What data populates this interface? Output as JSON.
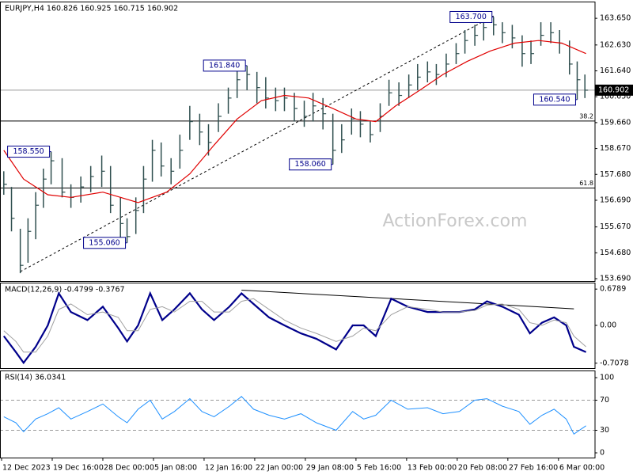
{
  "chart_data": [
    {
      "type": "ohlc",
      "title": "EURJPY,H4  160.826 160.925 160.715 160.902",
      "watermark": "ActionForex.com",
      "color": "#2f4f4f",
      "xlim": [
        -1.44,
        539.2
      ],
      "ylim": [
        153.6,
        164.29
      ],
      "xticks": [
        {
          "value": 0,
          "label": "12 Dec 2023"
        },
        {
          "value": 46,
          "label": "19 Dec 16:00"
        },
        {
          "value": 92,
          "label": "28 Dec 00:00"
        },
        {
          "value": 138,
          "label": "5 Jan 08:00"
        },
        {
          "value": 184,
          "label": "12 Jan 16:00"
        },
        {
          "value": 230,
          "label": "22 Jan 00:00"
        },
        {
          "value": 276,
          "label": "29 Jan 08:00"
        },
        {
          "value": 322,
          "label": "5 Feb 16:00"
        },
        {
          "value": 368,
          "label": "13 Feb 00:00"
        },
        {
          "value": 414,
          "label": "20 Feb 08:00"
        },
        {
          "value": 460,
          "label": "27 Feb 16:00"
        },
        {
          "value": 506,
          "label": "6 Mar 00:00"
        }
      ],
      "yticks": [
        {
          "value": 163.65,
          "label": "163.650"
        },
        {
          "value": 162.63,
          "label": "162.630"
        },
        {
          "value": 161.64,
          "label": "161.640"
        },
        {
          "value": 160.65,
          "label": "160.650"
        },
        {
          "value": 159.66,
          "label": "159.660"
        },
        {
          "value": 158.67,
          "label": "158.670"
        },
        {
          "value": 157.68,
          "label": "157.680"
        },
        {
          "value": 156.69,
          "label": "156.690"
        },
        {
          "value": 155.67,
          "label": "155.670"
        },
        {
          "value": 154.68,
          "label": "154.680"
        },
        {
          "value": 153.69,
          "label": "153.690"
        }
      ],
      "x": [
        2,
        9,
        17,
        24,
        31,
        38,
        45,
        55,
        63,
        72,
        81,
        91,
        99,
        108,
        114,
        122,
        129,
        137,
        145,
        154,
        162,
        171,
        180,
        188,
        197,
        206,
        214,
        223,
        232,
        240,
        249,
        257,
        266,
        275,
        283,
        292,
        301,
        309,
        318,
        326,
        335,
        344,
        352,
        361,
        370,
        378,
        387,
        395,
        404,
        413,
        421,
        430,
        438,
        447,
        455,
        464,
        473,
        481,
        490,
        499,
        507,
        516,
        523,
        530
      ],
      "high": [
        157.8,
        157.2,
        155.6,
        156.0,
        157.0,
        157.9,
        158.55,
        158.3,
        157.3,
        157.6,
        158.0,
        158.4,
        158.0,
        156.8,
        156.0,
        156.8,
        158.0,
        159.0,
        158.9,
        158.3,
        159.2,
        160.3,
        160.0,
        159.6,
        160.4,
        161.0,
        161.7,
        161.84,
        161.6,
        161.4,
        161.0,
        161.0,
        160.8,
        160.5,
        160.8,
        160.6,
        160.0,
        159.6,
        160.2,
        160.1,
        159.7,
        160.4,
        161.3,
        161.2,
        161.5,
        161.9,
        162.0,
        161.9,
        162.3,
        162.7,
        163.2,
        163.4,
        163.7,
        163.7,
        163.5,
        163.4,
        163.0,
        162.8,
        163.5,
        163.5,
        163.2,
        162.8,
        162.0,
        161.5
      ],
      "low": [
        156.9,
        155.5,
        153.9,
        154.3,
        155.2,
        156.4,
        157.3,
        156.8,
        156.4,
        156.6,
        157.0,
        157.2,
        156.2,
        155.2,
        155.06,
        155.4,
        156.2,
        157.4,
        157.6,
        157.3,
        157.9,
        159.0,
        158.8,
        158.4,
        159.3,
        160.0,
        160.6,
        160.9,
        160.4,
        160.2,
        160.1,
        160.1,
        159.7,
        159.5,
        159.7,
        159.4,
        158.06,
        158.5,
        159.2,
        159.1,
        158.9,
        159.3,
        160.3,
        160.3,
        160.6,
        160.9,
        161.2,
        161.1,
        161.4,
        161.9,
        162.3,
        162.6,
        162.8,
        163.0,
        162.7,
        162.5,
        161.8,
        161.9,
        162.6,
        162.7,
        162.3,
        161.5,
        160.54,
        160.6
      ],
      "close": [
        157.3,
        156.0,
        154.2,
        155.5,
        156.5,
        157.5,
        158.2,
        157.0,
        156.8,
        157.2,
        157.6,
        157.8,
        156.5,
        155.8,
        155.3,
        156.3,
        157.5,
        158.6,
        158.0,
        157.8,
        158.6,
        159.7,
        159.3,
        158.9,
        159.9,
        160.6,
        161.3,
        161.5,
        161.0,
        160.6,
        160.5,
        160.6,
        160.2,
        159.9,
        160.3,
        160.0,
        158.6,
        159.0,
        159.8,
        159.6,
        159.2,
        159.9,
        160.8,
        160.7,
        161.1,
        161.4,
        161.6,
        161.5,
        161.9,
        162.3,
        162.8,
        163.0,
        163.3,
        163.4,
        163.1,
        162.9,
        162.3,
        162.3,
        163.0,
        163.1,
        162.7,
        161.9,
        161.3,
        160.9
      ],
      "moving_average": {
        "color": "#e00000",
        "x": [
          2,
          20,
          42,
          63,
          92,
          124,
          150,
          171,
          193,
          214,
          236,
          257,
          279,
          301,
          322,
          340,
          358,
          380,
          401,
          423,
          444,
          466,
          488,
          509,
          531
        ],
        "values": [
          158.6,
          157.5,
          156.9,
          156.8,
          157.0,
          156.6,
          157.0,
          157.7,
          158.8,
          159.8,
          160.5,
          160.7,
          160.6,
          160.2,
          159.8,
          159.7,
          160.3,
          160.9,
          161.5,
          162.0,
          162.4,
          162.7,
          162.8,
          162.7,
          162.3
        ]
      },
      "levels": [
        {
          "label": "38.2",
          "value": 159.72
        },
        {
          "label": "61.8",
          "value": 157.16
        }
      ],
      "last_price": {
        "value": 160.902,
        "label": "160.902"
      },
      "trendline": {
        "x": [
          17,
          447
        ],
        "values": [
          153.96,
          163.74
        ]
      },
      "annotations": [
        {
          "label": "163.700",
          "value": 163.7,
          "x": 447
        },
        {
          "label": "161.840",
          "value": 161.84,
          "x": 223
        },
        {
          "label": "160.540",
          "value": 160.54,
          "x": 523
        },
        {
          "label": "158.550",
          "value": 158.55,
          "x": 45
        },
        {
          "label": "158.060",
          "value": 158.06,
          "x": 301
        },
        {
          "label": "155.060",
          "value": 155.06,
          "x": 114
        }
      ]
    },
    {
      "type": "line",
      "title": "MACD(12,26,9) -0.4799 -0.3767",
      "xlim": [
        -1.44,
        539.2
      ],
      "ylim": [
        -0.8,
        0.8
      ],
      "yticks": [
        0.6789,
        {
          "value": 0,
          "label": "0.00"
        },
        -0.7078
      ],
      "x": [
        2,
        13,
        20,
        31,
        42,
        52,
        63,
        78,
        92,
        106,
        114,
        124,
        135,
        146,
        157,
        171,
        182,
        193,
        207,
        218,
        229,
        243,
        257,
        272,
        286,
        304,
        319,
        329,
        340,
        354,
        369,
        387,
        401,
        416,
        430,
        441,
        455,
        470,
        480,
        491,
        502,
        513,
        520,
        531
      ],
      "series": [
        {
          "color": "#00008b",
          "values": [
            -0.2,
            -0.5,
            -0.7,
            -0.4,
            0.0,
            0.6,
            0.25,
            0.1,
            0.35,
            -0.05,
            -0.3,
            0.0,
            0.6,
            0.1,
            0.3,
            0.6,
            0.3,
            0.1,
            0.35,
            0.6,
            0.4,
            0.15,
            0.0,
            -0.15,
            -0.25,
            -0.45,
            0.0,
            0.0,
            -0.2,
            0.5,
            0.35,
            0.25,
            0.25,
            0.25,
            0.3,
            0.45,
            0.35,
            0.2,
            -0.15,
            0.05,
            0.15,
            0.0,
            -0.4,
            -0.5
          ]
        },
        {
          "color": "#a0a0a0",
          "values": [
            -0.1,
            -0.3,
            -0.5,
            -0.5,
            -0.2,
            0.3,
            0.4,
            0.2,
            0.25,
            0.15,
            -0.1,
            -0.1,
            0.3,
            0.35,
            0.25,
            0.45,
            0.45,
            0.25,
            0.25,
            0.45,
            0.5,
            0.3,
            0.1,
            -0.05,
            -0.15,
            -0.3,
            -0.2,
            -0.05,
            -0.1,
            0.2,
            0.35,
            0.3,
            0.25,
            0.25,
            0.28,
            0.38,
            0.4,
            0.3,
            0.05,
            0.0,
            0.1,
            0.05,
            -0.2,
            -0.4
          ]
        }
      ],
      "trendline": {
        "x": [
          218,
          520
        ],
        "values": [
          0.66,
          0.31
        ]
      }
    },
    {
      "type": "line",
      "title": "RSI(14) 36.0341",
      "xlim": [
        -1.44,
        539.2
      ],
      "ylim": [
        -6.3,
        109.5
      ],
      "yticks": [
        100,
        70,
        30,
        0
      ],
      "grid": "dashed",
      "x": [
        2,
        13,
        20,
        31,
        42,
        52,
        63,
        78,
        92,
        106,
        114,
        124,
        135,
        146,
        157,
        171,
        182,
        193,
        207,
        218,
        229,
        243,
        257,
        272,
        286,
        304,
        319,
        329,
        340,
        354,
        369,
        387,
        401,
        416,
        430,
        441,
        455,
        470,
        480,
        491,
        502,
        513,
        520,
        531
      ],
      "series": [
        {
          "color": "#1e90ff",
          "values": [
            48,
            40,
            28,
            45,
            52,
            60,
            45,
            55,
            65,
            48,
            40,
            58,
            70,
            45,
            55,
            72,
            55,
            48,
            62,
            75,
            58,
            50,
            45,
            52,
            40,
            30,
            55,
            45,
            50,
            70,
            58,
            60,
            52,
            55,
            70,
            72,
            62,
            55,
            38,
            50,
            58,
            45,
            25,
            36
          ]
        }
      ]
    }
  ]
}
